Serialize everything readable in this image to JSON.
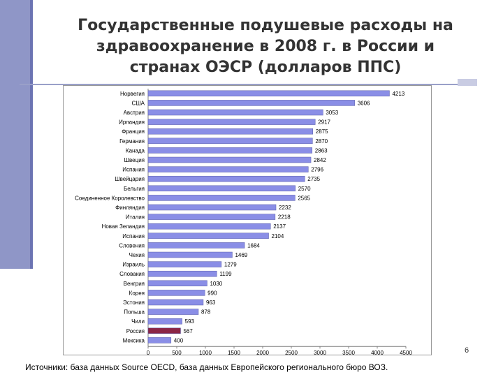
{
  "slide": {
    "title_lines": [
      "Государственные подушевые расходы на",
      "здравоохранение в 2008 г. в России и",
      "странах ОЭСР (долларов ППС)"
    ],
    "source": "Источники: база данных Source OECD, база данных Европейского регионального бюро ВОЗ.",
    "page_number": "6"
  },
  "chart_data": {
    "type": "bar",
    "orientation": "horizontal",
    "categories": [
      "Норвегия",
      "США",
      "Австрия",
      "Ирландия",
      "Франция",
      "Германия",
      "Канада",
      "Швеция",
      "Испания",
      "Швейцария",
      "Бельгия",
      "Соединенное Королевство",
      "Финляндия",
      "Италия",
      "Новая Зеландия",
      "Испания",
      "Словения",
      "Чехия",
      "Израиль",
      "Словакия",
      "Венгрия",
      "Корея",
      "Эстония",
      "Польша",
      "Чили",
      "Россия",
      "Мексика"
    ],
    "values": [
      4213,
      3606,
      3053,
      2917,
      2875,
      2870,
      2863,
      2842,
      2796,
      2735,
      2570,
      2565,
      2232,
      2218,
      2137,
      2104,
      1684,
      1469,
      1279,
      1199,
      1030,
      990,
      963,
      878,
      593,
      567,
      400
    ],
    "value_labels": [
      "4213",
      "3606",
      "3053",
      "2917",
      "2875",
      "2870",
      "2863",
      "2842",
      "2796",
      "2735",
      "2570",
      "2565",
      "2232",
      "2218",
      "2137",
      "2104",
      "1684",
      "1469",
      "1279",
      "1199",
      "1030",
      "990",
      "963",
      "878",
      "593",
      "567",
      "400"
    ],
    "highlight": "Россия",
    "xlim": [
      0,
      4500
    ],
    "xticks": [
      "0",
      "500",
      "1000",
      "1500",
      "2000",
      "2500",
      "3000",
      "3500",
      "4000",
      "4500"
    ],
    "colors": {
      "bar": "#8a8ee6",
      "highlight": "#8b2545",
      "label_box": "#ffffff"
    }
  }
}
